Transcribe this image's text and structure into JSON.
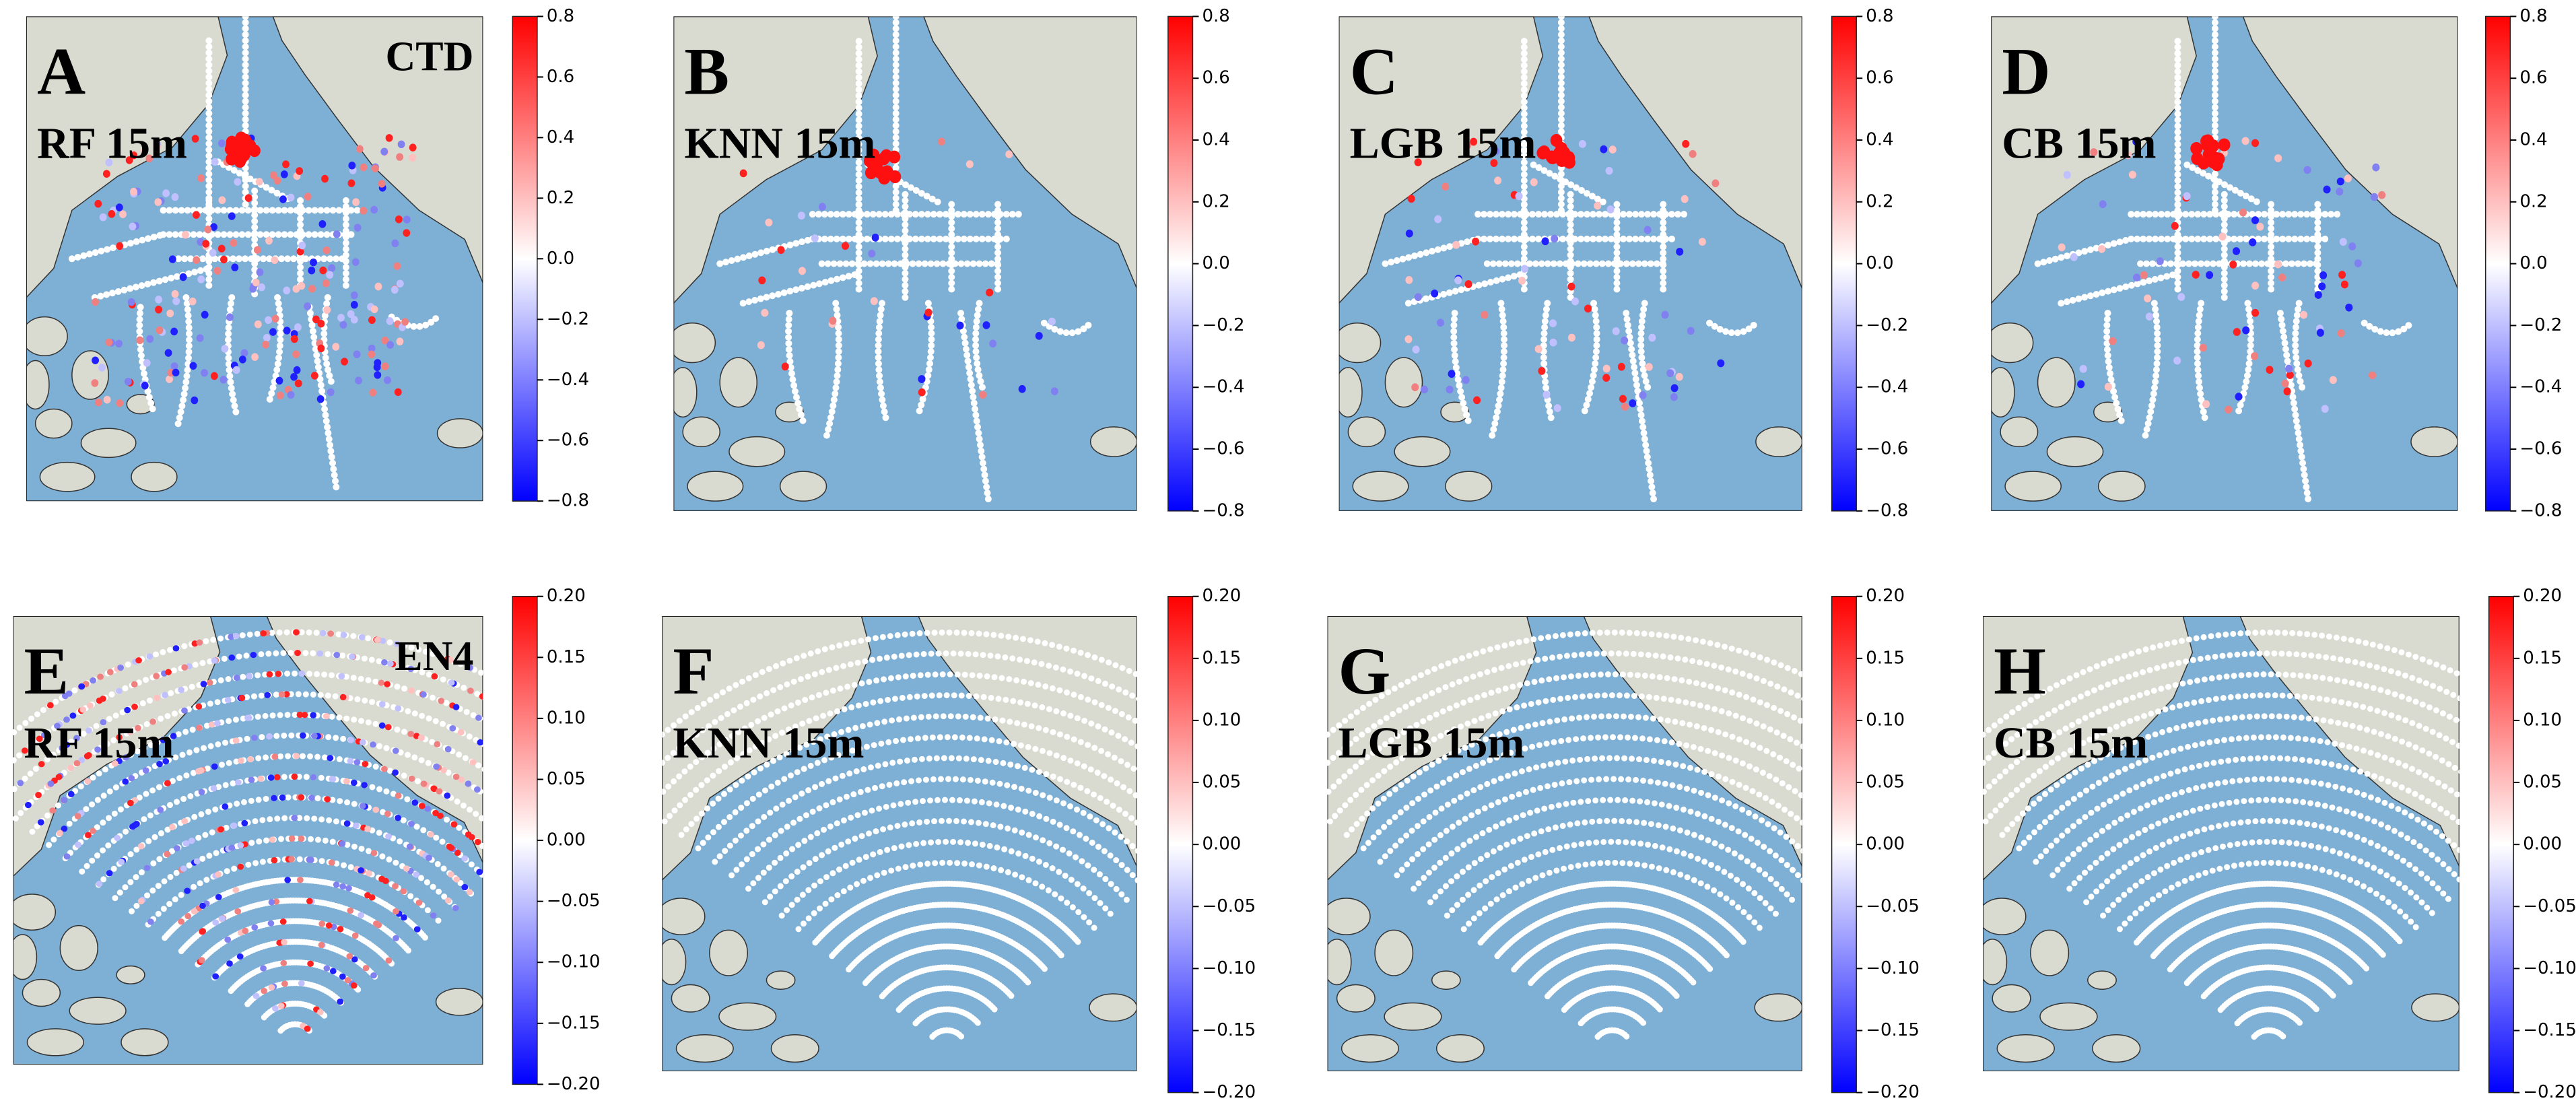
{
  "chart_data": [
    {
      "type": "map",
      "label": "A",
      "title": "RF  15m",
      "annotation": "CTD",
      "clim": [
        -0.8,
        0.8
      ],
      "cticks": [
        {
          "value": -0.8,
          "label": "−0.8"
        },
        {
          "value": -0.6,
          "label": "−0.6"
        },
        {
          "value": -0.4,
          "label": "−0.4"
        },
        {
          "value": -0.2,
          "label": "−0.2"
        },
        {
          "value": 0,
          "label": "0.0"
        },
        0.2,
        0.4,
        0.6,
        0.8
      ]
    },
    {
      "type": "map",
      "label": "B",
      "title": "KNN 15m",
      "clim": [
        -0.8,
        0.8
      ],
      "cticks": [
        {
          "value": -0.8,
          "label": "−0.8"
        },
        {
          "value": -0.6,
          "label": "−0.6"
        },
        {
          "value": -0.4,
          "label": "−0.4"
        },
        {
          "value": -0.2,
          "label": "−0.2"
        },
        {
          "value": 0,
          "label": "0.0"
        },
        0.2,
        0.4,
        0.6,
        0.8
      ]
    },
    {
      "type": "map",
      "label": "C",
      "title": "LGB 15m",
      "clim": [
        -0.8,
        0.8
      ],
      "cticks": [
        {
          "value": -0.8,
          "label": "−0.8"
        },
        {
          "value": -0.6,
          "label": "−0.6"
        },
        {
          "value": -0.4,
          "label": "−0.4"
        },
        {
          "value": -0.2,
          "label": "−0.2"
        },
        {
          "value": 0,
          "label": "0.0"
        },
        0.2,
        0.4,
        0.6,
        0.8
      ]
    },
    {
      "type": "map",
      "label": "D",
      "title": "CB 15m",
      "clim": [
        -0.8,
        0.8
      ],
      "cticks": [
        {
          "value": -0.8,
          "label": "−0.8"
        },
        {
          "value": -0.6,
          "label": "−0.6"
        },
        {
          "value": -0.4,
          "label": "−0.4"
        },
        {
          "value": -0.2,
          "label": "−0.2"
        },
        {
          "value": 0,
          "label": "0.0"
        },
        0.2,
        0.4,
        0.6,
        0.8
      ]
    },
    {
      "type": "map",
      "label": "E",
      "title": "RF 15m",
      "annotation": "EN4",
      "clim": [
        -0.2,
        0.2
      ],
      "cticks": [
        {
          "value": -0.2,
          "label": "−0.20"
        },
        {
          "value": -0.15,
          "label": "−0.15"
        },
        {
          "value": -0.1,
          "label": "−0.10"
        },
        {
          "value": -0.05,
          "label": "−0.05"
        },
        {
          "value": 0,
          "label": "0.00"
        },
        0.05,
        {
          "value": 0.1,
          "label": "0.10"
        },
        0.15,
        {
          "value": 0.2,
          "label": "0.20"
        }
      ]
    },
    {
      "type": "map",
      "label": "F",
      "title": "KNN 15m",
      "clim": [
        -0.2,
        0.2
      ],
      "cticks": [
        {
          "value": -0.2,
          "label": "−0.20"
        },
        {
          "value": -0.15,
          "label": "−0.15"
        },
        {
          "value": -0.1,
          "label": "−0.10"
        },
        {
          "value": -0.05,
          "label": "−0.05"
        },
        {
          "value": 0,
          "label": "0.00"
        },
        0.05,
        {
          "value": 0.1,
          "label": "0.10"
        },
        0.15,
        {
          "value": 0.2,
          "label": "0.20"
        }
      ]
    },
    {
      "type": "map",
      "label": "G",
      "title": "LGB 15m",
      "clim": [
        -0.2,
        0.2
      ],
      "cticks": [
        {
          "value": -0.2,
          "label": "−0.20"
        },
        {
          "value": -0.15,
          "label": "−0.15"
        },
        {
          "value": -0.1,
          "label": "−0.10"
        },
        {
          "value": -0.05,
          "label": "−0.05"
        },
        {
          "value": 0,
          "label": "0.00"
        },
        0.05,
        {
          "value": 0.1,
          "label": "0.10"
        },
        0.15,
        {
          "value": 0.2,
          "label": "0.20"
        }
      ]
    },
    {
      "type": "map",
      "label": "H",
      "title": "CB 15m",
      "clim": [
        -0.2,
        0.2
      ],
      "cticks": [
        {
          "value": -0.2,
          "label": "−0.20"
        },
        {
          "value": -0.15,
          "label": "−0.15"
        },
        {
          "value": -0.1,
          "label": "−0.10"
        },
        {
          "value": -0.05,
          "label": "−0.05"
        },
        {
          "value": 0,
          "label": "0.00"
        },
        0.05,
        {
          "value": 0.1,
          "label": "0.10"
        },
        0.15,
        {
          "value": 0.2,
          "label": "0.20"
        }
      ]
    }
  ]
}
